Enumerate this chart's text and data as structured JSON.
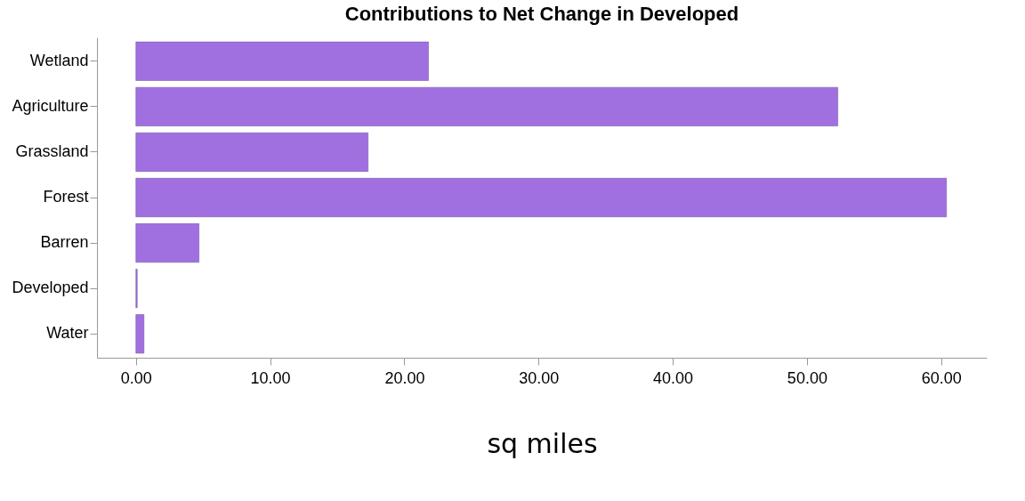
{
  "chart_data": {
    "type": "bar",
    "orientation": "horizontal",
    "title": "Contributions to Net Change in Developed",
    "xlabel": "sq miles",
    "categories": [
      "Wetland",
      "Agriculture",
      "Grassland",
      "Forest",
      "Barren",
      "Developed",
      "Water"
    ],
    "values": [
      21.8,
      52.3,
      17.3,
      60.4,
      4.7,
      0.1,
      0.6
    ],
    "color": "#a070e0",
    "xlim": [
      -2.9,
      63.4
    ],
    "xticks": [
      {
        "value": 0,
        "label": "0.00"
      },
      {
        "value": 10,
        "label": "10.00"
      },
      {
        "value": 20,
        "label": "20.00"
      },
      {
        "value": 30,
        "label": "30.00"
      },
      {
        "value": 40,
        "label": "40.00"
      },
      {
        "value": 50,
        "label": "50.00"
      },
      {
        "value": 60,
        "label": "60.00"
      }
    ],
    "grid": false
  }
}
